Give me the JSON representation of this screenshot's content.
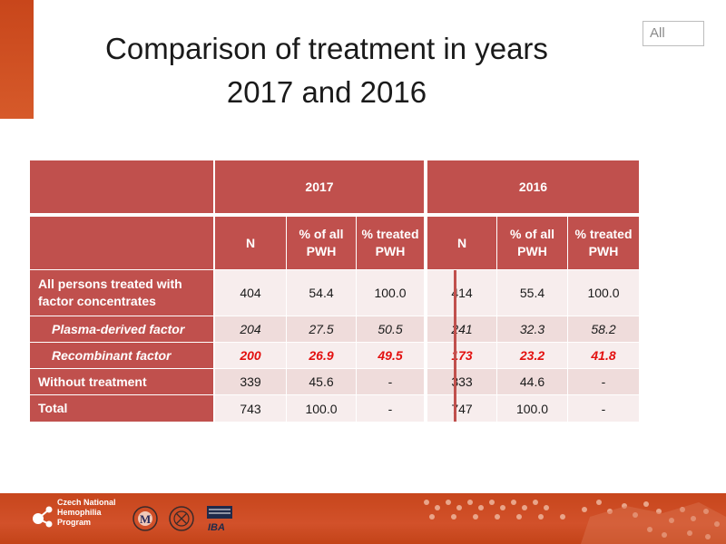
{
  "filter": {
    "label": "All"
  },
  "title": {
    "line1": "Comparison of treatment in years",
    "line2": "2017 and 2016"
  },
  "table": {
    "years": [
      "2017",
      "2016"
    ],
    "col_headers": {
      "n": "N",
      "pct_all": "% of all PWH",
      "pct_treated": "% treated PWH"
    },
    "rows": [
      {
        "label": "All persons treated with factor concentrates",
        "y2017": [
          "404",
          "54.4",
          "100.0"
        ],
        "y2016": [
          "414",
          "55.4",
          "100.0"
        ]
      },
      {
        "label": "Plasma-derived factor",
        "y2017": [
          "204",
          "27.5",
          "50.5"
        ],
        "y2016": [
          "241",
          "32.3",
          "58.2"
        ]
      },
      {
        "label": "Recombinant factor",
        "y2017": [
          "200",
          "26.9",
          "49.5"
        ],
        "y2016": [
          "173",
          "23.2",
          "41.8"
        ]
      },
      {
        "label": "Without treatment",
        "y2017": [
          "339",
          "45.6",
          "-"
        ],
        "y2016": [
          "333",
          "44.6",
          "-"
        ]
      },
      {
        "label": "Total",
        "y2017": [
          "743",
          "100.0",
          "-"
        ],
        "y2016": [
          "747",
          "100.0",
          "-"
        ]
      }
    ]
  },
  "footer": {
    "logo_lines": [
      "Czech National",
      "Hemophilia",
      "Program"
    ],
    "iba_label": "IBA"
  },
  "colors": {
    "header_red": "#c0504d",
    "accent_orange": "#c8461b",
    "highlight_red": "#e3100f"
  }
}
